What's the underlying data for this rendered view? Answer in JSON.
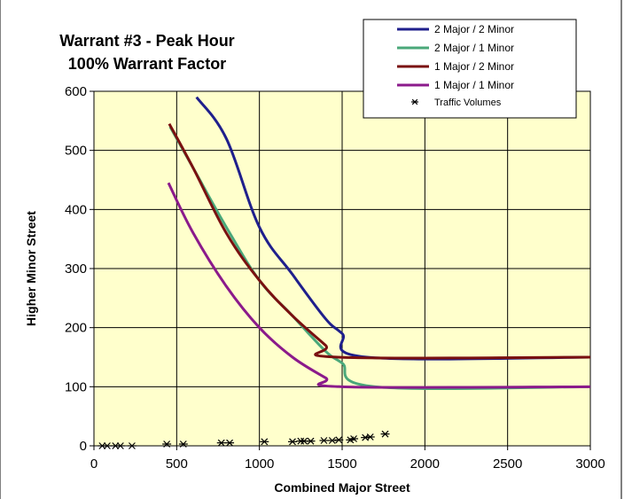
{
  "chart_data": {
    "type": "line",
    "title_lines": [
      "Warrant #3 - Peak Hour",
      "100% Warrant Factor"
    ],
    "xlabel": "Combined Major Street",
    "ylabel": "Higher Minor Street",
    "xlim": [
      0,
      3000
    ],
    "ylim": [
      0,
      600
    ],
    "x_ticks": [
      "0",
      "500",
      "1000",
      "1500",
      "2000",
      "2500",
      "3000"
    ],
    "y_ticks": [
      "0",
      "100",
      "200",
      "300",
      "400",
      "500",
      "600"
    ],
    "grid": true,
    "legend_position": "top-right",
    "plot_background": "#ffffcc",
    "series": [
      {
        "name": "2 Major / 2 Minor",
        "color": "#1f1f8c",
        "points": [
          [
            620,
            590
          ],
          [
            800,
            520
          ],
          [
            1000,
            370
          ],
          [
            1200,
            290
          ],
          [
            1400,
            215
          ],
          [
            1500,
            190
          ],
          [
            1650,
            150
          ],
          [
            3000,
            150
          ]
        ]
      },
      {
        "name": "2 Major / 1 Minor",
        "color": "#4aa87a",
        "points": [
          [
            460,
            540
          ],
          [
            600,
            470
          ],
          [
            800,
            370
          ],
          [
            1000,
            280
          ],
          [
            1200,
            220
          ],
          [
            1400,
            160
          ],
          [
            1500,
            140
          ],
          [
            1700,
            100
          ],
          [
            3000,
            100
          ]
        ]
      },
      {
        "name": "1 Major / 2 Minor",
        "color": "#7a1010",
        "points": [
          [
            455,
            545
          ],
          [
            600,
            470
          ],
          [
            800,
            360
          ],
          [
            1000,
            280
          ],
          [
            1200,
            220
          ],
          [
            1400,
            170
          ],
          [
            1475,
            150
          ],
          [
            3000,
            150
          ]
        ]
      },
      {
        "name": "1 Major / 1 Minor",
        "color": "#8b1a8b",
        "points": [
          [
            450,
            445
          ],
          [
            600,
            360
          ],
          [
            800,
            270
          ],
          [
            1000,
            200
          ],
          [
            1200,
            150
          ],
          [
            1400,
            115
          ],
          [
            1500,
            100
          ],
          [
            3000,
            100
          ]
        ]
      }
    ],
    "scatter": {
      "name": "Traffic Volumes",
      "marker": "asterisk",
      "points": [
        [
          50,
          0
        ],
        [
          80,
          0
        ],
        [
          130,
          0
        ],
        [
          160,
          0
        ],
        [
          230,
          0
        ],
        [
          440,
          3
        ],
        [
          540,
          3
        ],
        [
          770,
          5
        ],
        [
          820,
          5
        ],
        [
          1030,
          7
        ],
        [
          1200,
          7
        ],
        [
          1250,
          8
        ],
        [
          1270,
          8
        ],
        [
          1310,
          8
        ],
        [
          1390,
          9
        ],
        [
          1440,
          9
        ],
        [
          1480,
          10
        ],
        [
          1550,
          10
        ],
        [
          1570,
          12
        ],
        [
          1640,
          14
        ],
        [
          1670,
          15
        ],
        [
          1760,
          20
        ]
      ]
    }
  }
}
